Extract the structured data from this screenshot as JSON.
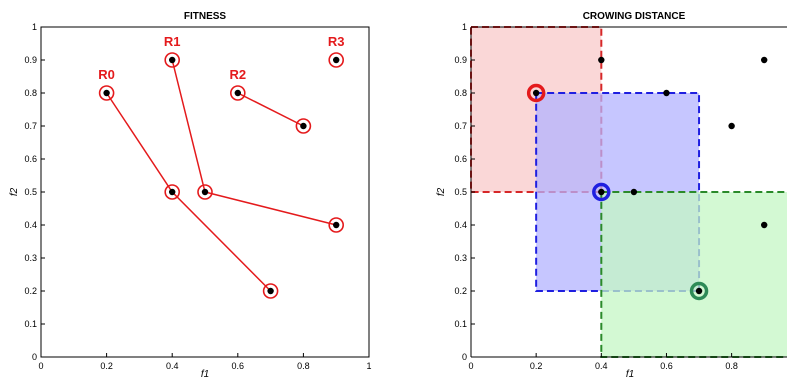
{
  "chart_data": [
    {
      "type": "scatter",
      "title": "FITNESS",
      "xlabel": "f1",
      "ylabel": "f2",
      "xlim": [
        0,
        1
      ],
      "ylim": [
        0,
        1
      ],
      "xticks": [
        "0",
        "0.2",
        "0.4",
        "0.6",
        "0.8",
        "1"
      ],
      "yticks": [
        "0",
        "0.1",
        "0.2",
        "0.3",
        "0.4",
        "0.5",
        "0.6",
        "0.7",
        "0.8",
        "0.9",
        "1"
      ],
      "accent_color": "#e41a1c",
      "point_color": "#000000",
      "series": [
        {
          "name": "R0",
          "points": [
            [
              0.2,
              0.8
            ],
            [
              0.4,
              0.5
            ],
            [
              0.7,
              0.2
            ]
          ],
          "label_at": [
            0.2,
            0.8
          ]
        },
        {
          "name": "R1",
          "points": [
            [
              0.4,
              0.9
            ],
            [
              0.5,
              0.5
            ],
            [
              0.9,
              0.4
            ]
          ],
          "label_at": [
            0.4,
            0.9
          ]
        },
        {
          "name": "R2",
          "points": [
            [
              0.6,
              0.8
            ],
            [
              0.8,
              0.7
            ]
          ],
          "label_at": [
            0.6,
            0.8
          ]
        },
        {
          "name": "R3",
          "points": [
            [
              0.9,
              0.9
            ]
          ],
          "label_at": [
            0.9,
            0.9
          ]
        }
      ]
    },
    {
      "type": "scatter",
      "title": "CROWING DISTANCE",
      "xlabel": "f1",
      "ylabel": "f2",
      "xlim": [
        0,
        0.97
      ],
      "ylim": [
        0,
        1
      ],
      "xticks": [
        "0",
        "0.2",
        "0.4",
        "0.6",
        "0.8"
      ],
      "yticks": [
        "0",
        "0.1",
        "0.2",
        "0.3",
        "0.4",
        "0.5",
        "0.6",
        "0.7",
        "0.8",
        "0.9",
        "1"
      ],
      "points": [
        [
          0.2,
          0.8
        ],
        [
          0.4,
          0.9
        ],
        [
          0.6,
          0.8
        ],
        [
          0.4,
          0.5
        ],
        [
          0.5,
          0.5
        ],
        [
          0.8,
          0.7
        ],
        [
          0.9,
          0.9
        ],
        [
          0.9,
          0.4
        ],
        [
          0.7,
          0.2
        ]
      ],
      "boxes": [
        {
          "x0": 0.0,
          "x1": 0.4,
          "y0": 0.5,
          "y1": 1.0,
          "fill": "#f8c9c9",
          "stroke": "#d62728"
        },
        {
          "x0": 0.2,
          "x1": 0.7,
          "y0": 0.2,
          "y1": 0.8,
          "fill": "#b3b3ff",
          "stroke": "#1f1fe0"
        },
        {
          "x0": 0.4,
          "x1": 1.0,
          "y0": 0.0,
          "y1": 0.5,
          "fill": "#c4f7c4",
          "stroke": "#2a8a2a"
        }
      ],
      "highlighted": [
        {
          "x": 0.2,
          "y": 0.8,
          "color": "#e41a1c"
        },
        {
          "x": 0.4,
          "y": 0.5,
          "color": "#1f1fe0"
        },
        {
          "x": 0.7,
          "y": 0.2,
          "color": "#2e8b57"
        }
      ]
    }
  ]
}
